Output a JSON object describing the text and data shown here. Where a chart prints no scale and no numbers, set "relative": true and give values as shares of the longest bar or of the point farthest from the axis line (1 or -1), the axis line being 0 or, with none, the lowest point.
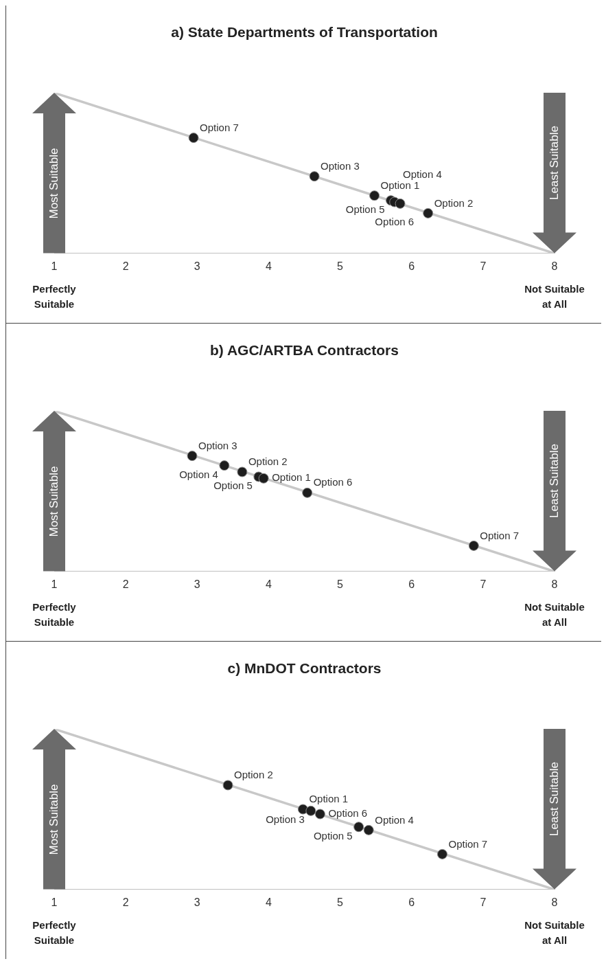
{
  "chart_data": [
    {
      "type": "scatter",
      "title": "a) State Departments of Transportation",
      "ylabel": "Most Suitable",
      "y2label": "Least Suitable",
      "relative": true,
      "xlim": [
        1,
        8
      ],
      "xticks": [
        1,
        2,
        3,
        4,
        5,
        6,
        7,
        8
      ],
      "grid": false,
      "legend": false,
      "marker": "circle",
      "series": [
        {
          "type": "line",
          "x": [
            1,
            8
          ],
          "values": [
            1,
            0
          ],
          "color": "#c8c8c8",
          "marker": "none"
        },
        {
          "type": "scatter",
          "x": [
            2.95,
            4.64,
            5.48,
            5.71,
            5.76,
            5.84,
            6.23
          ],
          "values": [
            0.72,
            0.48,
            0.36,
            0.33,
            0.32,
            0.31,
            0.25
          ],
          "color": "#1e1e1e"
        }
      ],
      "annotations": [
        {
          "text": "Option 7",
          "x": 2.95,
          "y": 0.72
        },
        {
          "text": "Option 3",
          "x": 4.64,
          "y": 0.48
        },
        {
          "text": "Option 1",
          "x": 5.48,
          "y": 0.36
        },
        {
          "text": "Option 5",
          "x": 5.71,
          "y": 0.33
        },
        {
          "text": "Option 6",
          "x": 5.76,
          "y": 0.32
        },
        {
          "text": "Option 4",
          "x": 5.84,
          "y": 0.31
        },
        {
          "text": "Option 2",
          "x": 6.23,
          "y": 0.25
        },
        "Perfectly Suitable",
        "Not Suitable at All"
      ]
    },
    {
      "type": "scatter",
      "title": "b) AGC/ARTBA Contractors",
      "ylabel": "Most Suitable",
      "y2label": "Least Suitable",
      "relative": true,
      "xlim": [
        1,
        8
      ],
      "xticks": [
        1,
        2,
        3,
        4,
        5,
        6,
        7,
        8
      ],
      "grid": false,
      "legend": false,
      "marker": "circle",
      "series": [
        {
          "type": "line",
          "x": [
            1,
            8
          ],
          "values": [
            1,
            0
          ],
          "color": "#c8c8c8",
          "marker": "none"
        },
        {
          "type": "scatter",
          "x": [
            2.93,
            3.38,
            3.63,
            3.86,
            3.93,
            4.54,
            6.87
          ],
          "values": [
            0.72,
            0.66,
            0.62,
            0.59,
            0.58,
            0.49,
            0.16
          ],
          "color": "#1e1e1e"
        }
      ],
      "annotations": [
        {
          "text": "Option 3",
          "x": 2.93,
          "y": 0.72
        },
        {
          "text": "Option 4",
          "x": 3.38,
          "y": 0.66
        },
        {
          "text": "Option 2",
          "x": 3.63,
          "y": 0.62
        },
        {
          "text": "Option 5",
          "x": 3.86,
          "y": 0.59
        },
        {
          "text": "Option 1",
          "x": 3.93,
          "y": 0.58
        },
        {
          "text": "Option 6",
          "x": 4.54,
          "y": 0.49
        },
        {
          "text": "Option 7",
          "x": 6.87,
          "y": 0.16
        },
        "Perfectly Suitable",
        "Not Suitable at All"
      ]
    },
    {
      "type": "scatter",
      "title": "c) MnDOT Contractors",
      "ylabel": "Most Suitable",
      "y2label": "Least Suitable",
      "relative": true,
      "xlim": [
        1,
        8
      ],
      "xticks": [
        1,
        2,
        3,
        4,
        5,
        6,
        7,
        8
      ],
      "grid": false,
      "legend": false,
      "marker": "circle",
      "series": [
        {
          "type": "line",
          "x": [
            1,
            8
          ],
          "values": [
            1,
            0
          ],
          "color": "#c8c8c8",
          "marker": "none"
        },
        {
          "type": "scatter",
          "x": [
            3.43,
            4.48,
            4.59,
            4.72,
            5.26,
            5.4,
            6.43
          ],
          "values": [
            0.65,
            0.5,
            0.49,
            0.47,
            0.39,
            0.37,
            0.22
          ],
          "color": "#1e1e1e"
        }
      ],
      "annotations": [
        {
          "text": "Option 2",
          "x": 3.43,
          "y": 0.65
        },
        {
          "text": "Option 1",
          "x": 4.48,
          "y": 0.5
        },
        {
          "text": "Option 3",
          "x": 4.59,
          "y": 0.49
        },
        {
          "text": "Option 6",
          "x": 4.72,
          "y": 0.47
        },
        {
          "text": "Option 5",
          "x": 5.26,
          "y": 0.39
        },
        {
          "text": "Option 4",
          "x": 5.4,
          "y": 0.37
        },
        {
          "text": "Option 7",
          "x": 6.43,
          "y": 0.22
        },
        "Perfectly Suitable",
        "Not Suitable at All"
      ]
    }
  ]
}
